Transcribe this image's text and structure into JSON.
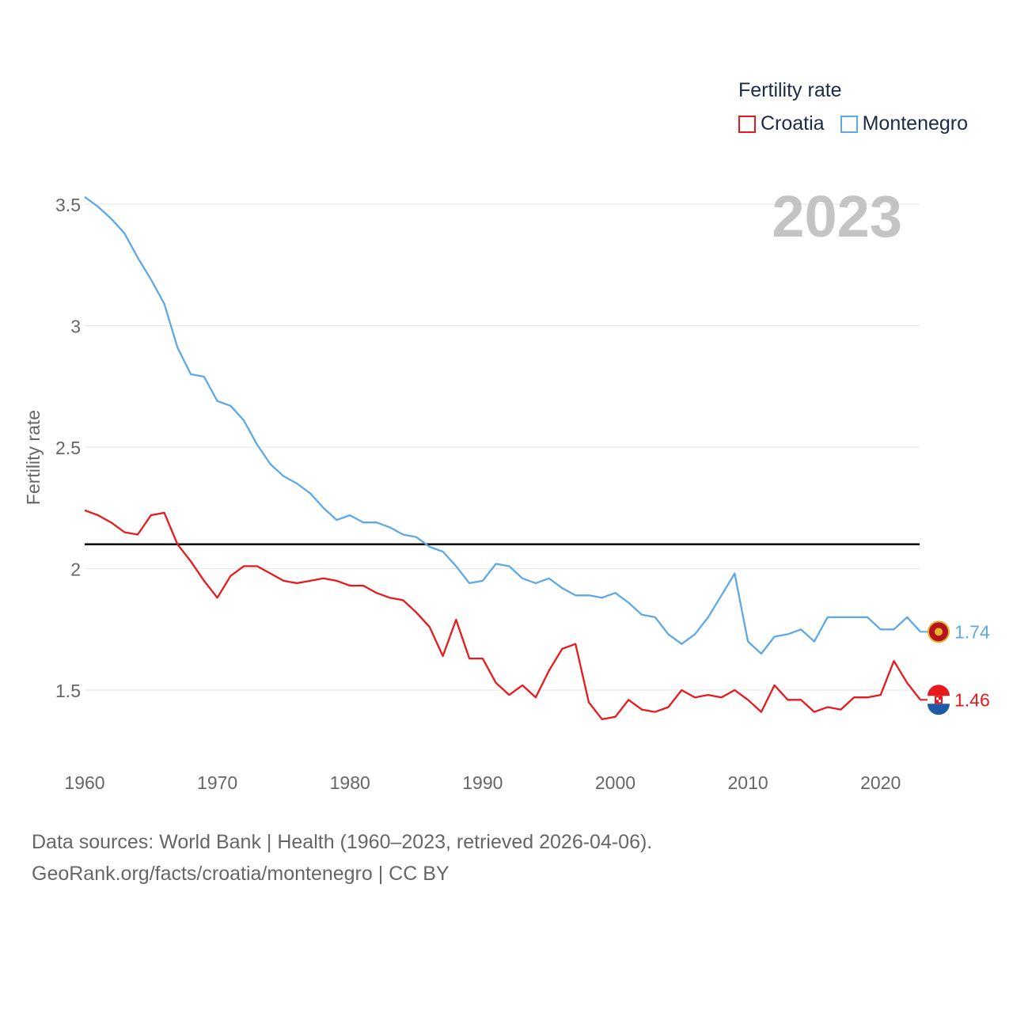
{
  "chart_data": {
    "type": "line",
    "title": "Fertility rate",
    "year_label": "2023",
    "xlabel": "",
    "ylabel": "Fertility rate",
    "xlim": [
      1960,
      2023
    ],
    "ylim": [
      1.3,
      3.6
    ],
    "x_ticks": [
      1960,
      1970,
      1980,
      1990,
      2000,
      2010,
      2020
    ],
    "y_ticks": [
      1.5,
      2,
      2.5,
      3,
      3.5
    ],
    "y_tick_labels": [
      "1.5",
      "2",
      "2.5",
      "3",
      "3.5"
    ],
    "reference_line": {
      "value": 2.1,
      "color": "#000000"
    },
    "x": [
      1960,
      1961,
      1962,
      1963,
      1964,
      1965,
      1966,
      1967,
      1968,
      1969,
      1970,
      1971,
      1972,
      1973,
      1974,
      1975,
      1976,
      1977,
      1978,
      1979,
      1980,
      1981,
      1982,
      1983,
      1984,
      1985,
      1986,
      1987,
      1988,
      1989,
      1990,
      1991,
      1992,
      1993,
      1994,
      1995,
      1996,
      1997,
      1998,
      1999,
      2000,
      2001,
      2002,
      2003,
      2004,
      2005,
      2006,
      2007,
      2008,
      2009,
      2010,
      2011,
      2012,
      2013,
      2014,
      2015,
      2016,
      2017,
      2018,
      2019,
      2020,
      2021,
      2022,
      2023
    ],
    "series": [
      {
        "name": "Croatia",
        "color": "#e8191c",
        "end_label": "1.46",
        "values": [
          2.24,
          2.22,
          2.19,
          2.15,
          2.14,
          2.22,
          2.23,
          2.1,
          2.03,
          1.95,
          1.88,
          1.97,
          2.01,
          2.01,
          1.98,
          1.95,
          1.94,
          1.95,
          1.96,
          1.95,
          1.93,
          1.93,
          1.9,
          1.88,
          1.87,
          1.82,
          1.76,
          1.64,
          1.79,
          1.63,
          1.63,
          1.53,
          1.48,
          1.52,
          1.47,
          1.58,
          1.67,
          1.69,
          1.45,
          1.38,
          1.39,
          1.46,
          1.42,
          1.41,
          1.43,
          1.5,
          1.47,
          1.48,
          1.47,
          1.5,
          1.46,
          1.41,
          1.52,
          1.46,
          1.46,
          1.41,
          1.43,
          1.42,
          1.47,
          1.47,
          1.48,
          1.62,
          1.53,
          1.46
        ]
      },
      {
        "name": "Montenegro",
        "color": "#5fa8e6",
        "end_label": "1.74",
        "values": [
          3.53,
          3.49,
          3.44,
          3.38,
          3.28,
          3.19,
          3.09,
          2.91,
          2.8,
          2.79,
          2.69,
          2.67,
          2.61,
          2.51,
          2.43,
          2.38,
          2.35,
          2.31,
          2.25,
          2.2,
          2.22,
          2.19,
          2.19,
          2.17,
          2.14,
          2.13,
          2.09,
          2.07,
          2.01,
          1.94,
          1.95,
          2.02,
          2.01,
          1.96,
          1.94,
          1.96,
          1.92,
          1.89,
          1.89,
          1.88,
          1.9,
          1.86,
          1.81,
          1.8,
          1.73,
          1.69,
          1.73,
          1.8,
          1.89,
          1.98,
          1.7,
          1.65,
          1.72,
          1.73,
          1.75,
          1.7,
          1.8,
          1.8,
          1.8,
          1.8,
          1.75,
          1.75,
          1.8,
          1.74
        ]
      }
    ]
  },
  "footer": {
    "line1": "Data sources: World Bank | Health (1960–2023, retrieved 2026-04-06).",
    "line2": "GeoRank.org/facts/croatia/montenegro | CC BY"
  }
}
